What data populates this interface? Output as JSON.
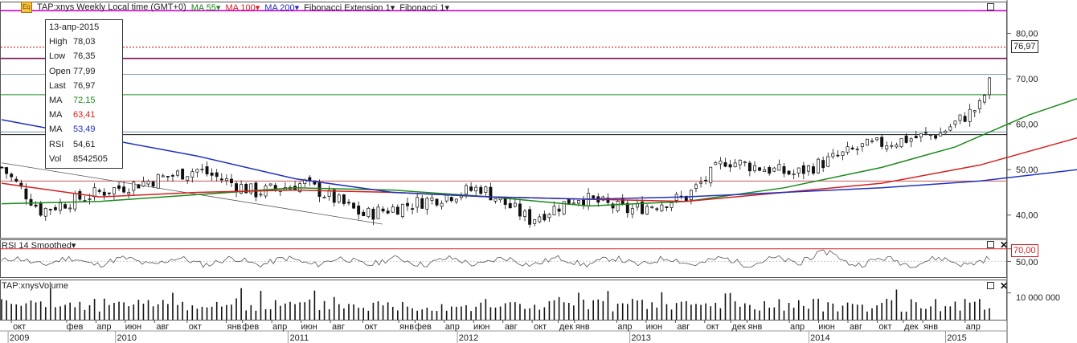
{
  "header": {
    "symbol_icon": "Eq",
    "items": [
      {
        "label": "TAP:xnys Weekly Local time (GMT+0)",
        "color": "#222222"
      },
      {
        "label": "MA 55",
        "color": "#1a8a1a"
      },
      {
        "label": "MA 100",
        "color": "#d42020"
      },
      {
        "label": "MA 200",
        "color": "#2030c0"
      },
      {
        "label": "Fibonacci Extension 1",
        "color": "#222222"
      },
      {
        "label": "Fibonacci 1",
        "color": "#222222"
      }
    ]
  },
  "tooltip": {
    "date": "13-апр-2015",
    "rows": [
      {
        "key": "High",
        "value": "78,03",
        "color": "#222222"
      },
      {
        "key": "Low",
        "value": "76,35",
        "color": "#222222"
      },
      {
        "key": "Open",
        "value": "77,99",
        "color": "#222222"
      },
      {
        "key": "Last",
        "value": "76,97",
        "color": "#222222"
      },
      {
        "key": "MA",
        "value": "72,15",
        "color": "#1a8a1a"
      },
      {
        "key": "MA",
        "value": "63,41",
        "color": "#d42020"
      },
      {
        "key": "MA",
        "value": "53,49",
        "color": "#2030c0"
      },
      {
        "key": "RSI",
        "value": "54,61",
        "color": "#222222"
      },
      {
        "key": "Vol",
        "value": "8542505",
        "color": "#222222"
      }
    ]
  },
  "rsi_panel": {
    "title": "RSI 14 Smoothed",
    "upper_label": "70,00",
    "mid_label": "50,00"
  },
  "volume_panel": {
    "title": "TAP:xnysVolume",
    "tick_label": "10 000 000"
  },
  "last_price_label": "76,97",
  "chart_data": [
    {
      "type": "candlestick",
      "title": "TAP:xnys Weekly",
      "ylim": [
        35,
        87
      ],
      "y_ticks": [
        "40,00",
        "50,00",
        "60,00",
        "70,00",
        "80,00"
      ],
      "anchors": [
        {
          "t": 0,
          "close": 50.5
        },
        {
          "t": 8,
          "close": 41
        },
        {
          "t": 20,
          "close": 45
        },
        {
          "t": 40,
          "close": 50
        },
        {
          "t": 52,
          "close": 45
        },
        {
          "t": 62,
          "close": 47
        },
        {
          "t": 74,
          "close": 40
        },
        {
          "t": 90,
          "close": 44
        },
        {
          "t": 98,
          "close": 46
        },
        {
          "t": 108,
          "close": 39
        },
        {
          "t": 118,
          "close": 44
        },
        {
          "t": 128,
          "close": 41
        },
        {
          "t": 140,
          "close": 44
        },
        {
          "t": 148,
          "close": 52
        },
        {
          "t": 162,
          "close": 49
        },
        {
          "t": 176,
          "close": 55
        },
        {
          "t": 192,
          "close": 58
        },
        {
          "t": 200,
          "close": 64
        },
        {
          "t": 204,
          "close": 74
        },
        {
          "t": 212,
          "close": 69
        },
        {
          "t": 222,
          "close": 74
        },
        {
          "t": 232,
          "close": 77
        },
        {
          "t": 238,
          "close": 74
        },
        {
          "t": 245,
          "close": 76.97
        }
      ],
      "moving_averages": [
        {
          "name": "MA 55",
          "color": "#1a8a1a",
          "points": [
            [
              0,
              42.5
            ],
            [
              20,
              43
            ],
            [
              40,
              44.5
            ],
            [
              60,
              46
            ],
            [
              80,
              45.5
            ],
            [
              100,
              44
            ],
            [
              120,
              42
            ],
            [
              140,
              43
            ],
            [
              160,
              46
            ],
            [
              180,
              50.5
            ],
            [
              195,
              55
            ],
            [
              210,
              62
            ],
            [
              225,
              67.5
            ],
            [
              245,
              72.15
            ]
          ]
        },
        {
          "name": "MA 100",
          "color": "#d42020",
          "points": [
            [
              0,
              47
            ],
            [
              20,
              44
            ],
            [
              40,
              45
            ],
            [
              60,
              45.5
            ],
            [
              80,
              45
            ],
            [
              100,
              44
            ],
            [
              120,
              43.5
            ],
            [
              140,
              43
            ],
            [
              160,
              45
            ],
            [
              180,
              47
            ],
            [
              200,
              51
            ],
            [
              220,
              57
            ],
            [
              245,
              63.41
            ]
          ]
        },
        {
          "name": "MA 200",
          "color": "#2030c0",
          "points": [
            [
              0,
              61
            ],
            [
              20,
              57
            ],
            [
              40,
              53
            ],
            [
              60,
              48
            ],
            [
              80,
              45
            ],
            [
              100,
              44
            ],
            [
              120,
              43.5
            ],
            [
              140,
              44
            ],
            [
              160,
              45
            ],
            [
              180,
              46
            ],
            [
              200,
              47.5
            ],
            [
              220,
              50
            ],
            [
              245,
              53.49
            ]
          ]
        }
      ],
      "horizontal_lines": [
        {
          "y": 85,
          "color": "#cc00cc",
          "style": "solid"
        },
        {
          "y": 76.97,
          "color": "#cc0000",
          "style": "dotted"
        },
        {
          "y": 74.5,
          "color": "#7a1050",
          "style": "solid"
        },
        {
          "y": 71,
          "color": "#7a9ab0",
          "style": "solid"
        },
        {
          "y": 66.5,
          "color": "#1a8a1a",
          "style": "solid"
        },
        {
          "y": 58.3,
          "color": "#7a9ab0",
          "style": "solid"
        },
        {
          "y": 57.7,
          "color": "#111111",
          "style": "solid"
        },
        {
          "y": 47.5,
          "color": "#cc5555",
          "style": "solid"
        }
      ],
      "channel_lines": [
        {
          "from": [
            0,
            51.5
          ],
          "to": [
            115,
            38
          ]
        },
        {
          "from": [
            0,
            50.5
          ],
          "to": [
            2,
            50.2
          ]
        }
      ]
    },
    {
      "type": "line",
      "title": "RSI 14 Smoothed",
      "ylim": [
        25,
        85
      ],
      "upper": 70,
      "mid": 50
    },
    {
      "type": "bar",
      "title": "TAP:xnysVolume",
      "ylim": [
        0,
        15000000
      ],
      "y_tick": 10000000
    }
  ],
  "time_axis": {
    "months": [
      {
        "label": "окт",
        "t": 3
      },
      {
        "label": "фев",
        "t": 20
      },
      {
        "label": "апр",
        "t": 29
      },
      {
        "label": "июн",
        "t": 38
      },
      {
        "label": "авг",
        "t": 47
      },
      {
        "label": "окт",
        "t": 57
      },
      {
        "label": "янв",
        "t": 69
      },
      {
        "label": "фев",
        "t": 74
      },
      {
        "label": "апр",
        "t": 83
      },
      {
        "label": "июн",
        "t": 92
      },
      {
        "label": "авг",
        "t": 101
      },
      {
        "label": "окт",
        "t": 111
      },
      {
        "label": "янв",
        "t": 122
      },
      {
        "label": "фев",
        "t": 127
      },
      {
        "label": "апр",
        "t": 136
      },
      {
        "label": "июн",
        "t": 145
      },
      {
        "label": "авг",
        "t": 154
      },
      {
        "label": "окт",
        "t": 163
      },
      {
        "label": "дек",
        "t": 171
      },
      {
        "label": "янв",
        "t": 176
      },
      {
        "label": "апр",
        "t": 189
      },
      {
        "label": "июн",
        "t": 198
      },
      {
        "label": "авг",
        "t": 207
      },
      {
        "label": "окт",
        "t": 216
      },
      {
        "label": "дек",
        "t": 224
      },
      {
        "label": "янв",
        "t": 229
      },
      {
        "label": "апр",
        "t": 242
      },
      {
        "label": "июн",
        "t": 251
      },
      {
        "label": "авг",
        "t": 260
      },
      {
        "label": "окт",
        "t": 269
      },
      {
        "label": "дек",
        "t": 277
      },
      {
        "label": "янв",
        "t": 283
      },
      {
        "label": "апр",
        "t": 296
      }
    ],
    "years": [
      {
        "label": "2009",
        "t": 2
      },
      {
        "label": "2010",
        "t": 35
      },
      {
        "label": "2011",
        "t": 88
      },
      {
        "label": "2012",
        "t": 140
      },
      {
        "label": "2013",
        "t": 193
      },
      {
        "label": "2014",
        "t": 248
      },
      {
        "label": "2015",
        "t": 290
      }
    ]
  }
}
